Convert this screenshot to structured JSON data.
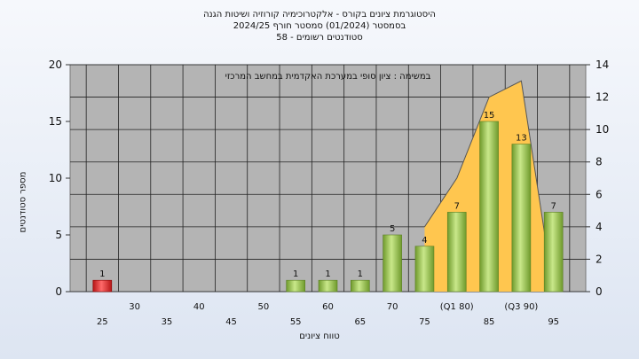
{
  "titles": {
    "line1": "היסטוגרמת ציונים בקורס - אלקטרוכימיה קורוזיה ושיטות הגנה",
    "line2": "בסמסטר  (01/2024)  סמסטר חורף  2024/25",
    "line3": "סטודנטים רשומים - 58"
  },
  "chart_data": {
    "type": "bar",
    "title": "היסטוגרמת ציונים בקורס - אלקטרוכימיה קורוזיה ושיטות הגנה",
    "annotation": "במשימה : ציון סופי במערכת האקדמית במחשב המרכזי",
    "xlabel": "טווח ציונים",
    "ylabel": "מספר סטודנטים",
    "categories": [
      "25",
      "30",
      "35",
      "40",
      "45",
      "50",
      "55",
      "60",
      "65",
      "70",
      "75",
      "(Q1 80)",
      "85",
      "(Q3 90)",
      "95"
    ],
    "values": [
      1,
      0,
      0,
      0,
      0,
      0,
      1,
      1,
      1,
      5,
      4,
      7,
      15,
      13,
      7
    ],
    "bar_colors": [
      "#e02626",
      "#8cc63f",
      "#8cc63f",
      "#8cc63f",
      "#8cc63f",
      "#8cc63f",
      "#8cc63f",
      "#8cc63f",
      "#8cc63f",
      "#8cc63f",
      "#8cc63f",
      "#8cc63f",
      "#8cc63f",
      "#8cc63f",
      "#8cc63f"
    ],
    "ylim": [
      0,
      20
    ],
    "yticks": [
      0,
      5,
      10,
      15,
      20
    ],
    "y2lim": [
      0,
      14
    ],
    "y2ticks": [
      0,
      2,
      4,
      6,
      8,
      10,
      12,
      14
    ],
    "area_series": {
      "color": "#ffc64f",
      "points": [
        {
          "x": "75",
          "y": 4
        },
        {
          "x": "(Q1 80)",
          "y": 7
        },
        {
          "x": "85",
          "y": 12
        },
        {
          "x": "(Q3 90)",
          "y": 13
        },
        {
          "x": "95",
          "y": 0
        }
      ]
    },
    "grid": true,
    "plot_bg": "#b4b4b4"
  }
}
